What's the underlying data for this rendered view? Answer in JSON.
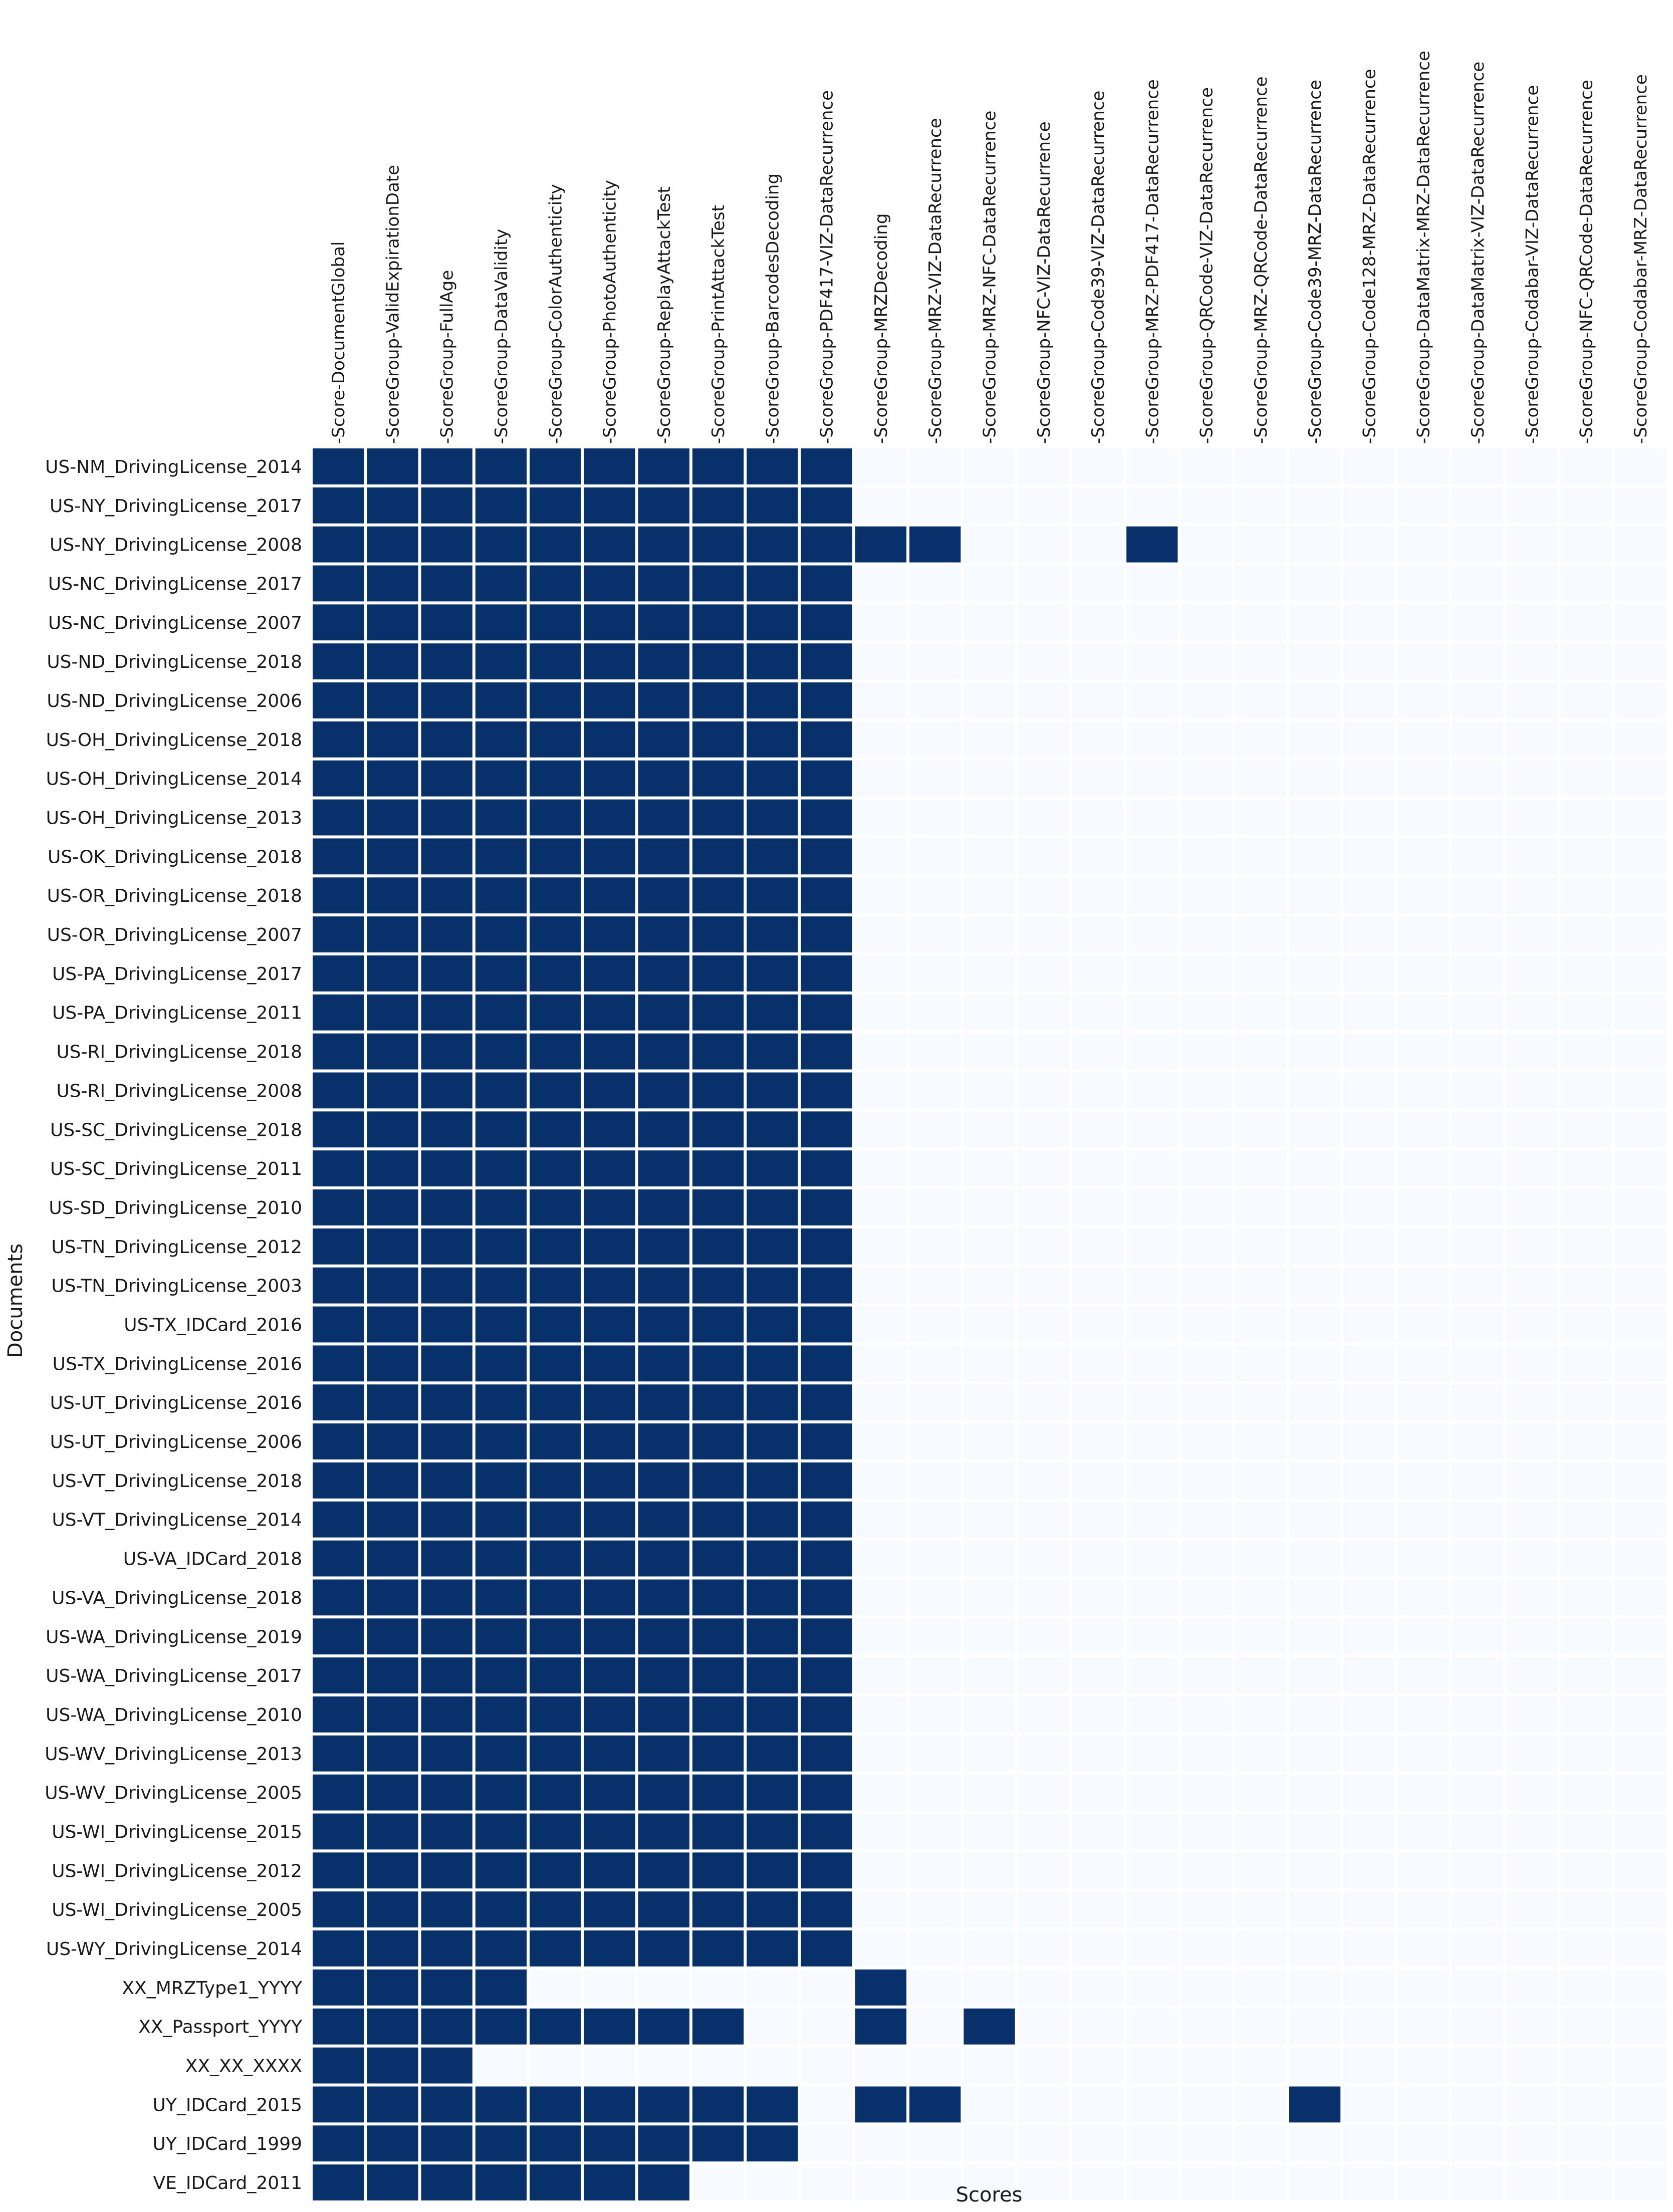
{
  "chart_data": {
    "type": "heatmap",
    "xlabel": "Scores",
    "ylabel": "Documents",
    "colors": {
      "high": "#08306b",
      "low": "#f7fbff",
      "separator": "#ffffff"
    },
    "columns": [
      "Score-DocumentGlobal",
      "ScoreGroup-ValidExpirationDate",
      "ScoreGroup-FullAge",
      "ScoreGroup-DataValidity",
      "ScoreGroup-ColorAuthenticity",
      "ScoreGroup-PhotoAuthenticity",
      "ScoreGroup-ReplayAttackTest",
      "ScoreGroup-PrintAttackTest",
      "ScoreGroup-BarcodesDecoding",
      "ScoreGroup-PDF417-VIZ-DataRecurrence",
      "ScoreGroup-MRZDecoding",
      "ScoreGroup-MRZ-VIZ-DataRecurrence",
      "ScoreGroup-MRZ-NFC-DataRecurrence",
      "ScoreGroup-NFC-VIZ-DataRecurrence",
      "ScoreGroup-Code39-VIZ-DataRecurrence",
      "ScoreGroup-MRZ-PDF417-DataRecurrence",
      "ScoreGroup-QRCode-VIZ-DataRecurrence",
      "ScoreGroup-MRZ-QRCode-DataRecurrence",
      "ScoreGroup-Code39-MRZ-DataRecurrence",
      "ScoreGroup-Code128-MRZ-DataRecurrence",
      "ScoreGroup-DataMatrix-MRZ-DataRecurrence",
      "ScoreGroup-DataMatrix-VIZ-DataRecurrence",
      "ScoreGroup-Codabar-VIZ-DataRecurrence",
      "ScoreGroup-NFC-QRCode-DataRecurrence",
      "ScoreGroup-Codabar-MRZ-DataRecurrence"
    ],
    "rows": [
      "US-NM_DrivingLicense_2014",
      "US-NY_DrivingLicense_2017",
      "US-NY_DrivingLicense_2008",
      "US-NC_DrivingLicense_2017",
      "US-NC_DrivingLicense_2007",
      "US-ND_DrivingLicense_2018",
      "US-ND_DrivingLicense_2006",
      "US-OH_DrivingLicense_2018",
      "US-OH_DrivingLicense_2014",
      "US-OH_DrivingLicense_2013",
      "US-OK_DrivingLicense_2018",
      "US-OR_DrivingLicense_2018",
      "US-OR_DrivingLicense_2007",
      "US-PA_DrivingLicense_2017",
      "US-PA_DrivingLicense_2011",
      "US-RI_DrivingLicense_2018",
      "US-RI_DrivingLicense_2008",
      "US-SC_DrivingLicense_2018",
      "US-SC_DrivingLicense_2011",
      "US-SD_DrivingLicense_2010",
      "US-TN_DrivingLicense_2012",
      "US-TN_DrivingLicense_2003",
      "US-TX_IDCard_2016",
      "US-TX_DrivingLicense_2016",
      "US-UT_DrivingLicense_2016",
      "US-UT_DrivingLicense_2006",
      "US-VT_DrivingLicense_2018",
      "US-VT_DrivingLicense_2014",
      "US-VA_IDCard_2018",
      "US-VA_DrivingLicense_2018",
      "US-WA_DrivingLicense_2019",
      "US-WA_DrivingLicense_2017",
      "US-WA_DrivingLicense_2010",
      "US-WV_DrivingLicense_2013",
      "US-WV_DrivingLicense_2005",
      "US-WI_DrivingLicense_2015",
      "US-WI_DrivingLicense_2012",
      "US-WI_DrivingLicense_2005",
      "US-WY_DrivingLicense_2014",
      "XX_MRZType1_YYYY",
      "XX_Passport_YYYY",
      "XX_XX_XXXX",
      "UY_IDCard_2015",
      "UY_IDCard_1999",
      "VE_IDCard_2011"
    ],
    "values": [
      [
        1,
        1,
        1,
        1,
        1,
        1,
        1,
        1,
        1,
        1,
        0,
        0,
        0,
        0,
        0,
        0,
        0,
        0,
        0,
        0,
        0,
        0,
        0,
        0,
        0
      ],
      [
        1,
        1,
        1,
        1,
        1,
        1,
        1,
        1,
        1,
        1,
        0,
        0,
        0,
        0,
        0,
        0,
        0,
        0,
        0,
        0,
        0,
        0,
        0,
        0,
        0
      ],
      [
        1,
        1,
        1,
        1,
        1,
        1,
        1,
        1,
        1,
        1,
        1,
        1,
        0,
        0,
        0,
        1,
        0,
        0,
        0,
        0,
        0,
        0,
        0,
        0,
        0
      ],
      [
        1,
        1,
        1,
        1,
        1,
        1,
        1,
        1,
        1,
        1,
        0,
        0,
        0,
        0,
        0,
        0,
        0,
        0,
        0,
        0,
        0,
        0,
        0,
        0,
        0
      ],
      [
        1,
        1,
        1,
        1,
        1,
        1,
        1,
        1,
        1,
        1,
        0,
        0,
        0,
        0,
        0,
        0,
        0,
        0,
        0,
        0,
        0,
        0,
        0,
        0,
        0
      ],
      [
        1,
        1,
        1,
        1,
        1,
        1,
        1,
        1,
        1,
        1,
        0,
        0,
        0,
        0,
        0,
        0,
        0,
        0,
        0,
        0,
        0,
        0,
        0,
        0,
        0
      ],
      [
        1,
        1,
        1,
        1,
        1,
        1,
        1,
        1,
        1,
        1,
        0,
        0,
        0,
        0,
        0,
        0,
        0,
        0,
        0,
        0,
        0,
        0,
        0,
        0,
        0
      ],
      [
        1,
        1,
        1,
        1,
        1,
        1,
        1,
        1,
        1,
        1,
        0,
        0,
        0,
        0,
        0,
        0,
        0,
        0,
        0,
        0,
        0,
        0,
        0,
        0,
        0
      ],
      [
        1,
        1,
        1,
        1,
        1,
        1,
        1,
        1,
        1,
        1,
        0,
        0,
        0,
        0,
        0,
        0,
        0,
        0,
        0,
        0,
        0,
        0,
        0,
        0,
        0
      ],
      [
        1,
        1,
        1,
        1,
        1,
        1,
        1,
        1,
        1,
        1,
        0,
        0,
        0,
        0,
        0,
        0,
        0,
        0,
        0,
        0,
        0,
        0,
        0,
        0,
        0
      ],
      [
        1,
        1,
        1,
        1,
        1,
        1,
        1,
        1,
        1,
        1,
        0,
        0,
        0,
        0,
        0,
        0,
        0,
        0,
        0,
        0,
        0,
        0,
        0,
        0,
        0
      ],
      [
        1,
        1,
        1,
        1,
        1,
        1,
        1,
        1,
        1,
        1,
        0,
        0,
        0,
        0,
        0,
        0,
        0,
        0,
        0,
        0,
        0,
        0,
        0,
        0,
        0
      ],
      [
        1,
        1,
        1,
        1,
        1,
        1,
        1,
        1,
        1,
        1,
        0,
        0,
        0,
        0,
        0,
        0,
        0,
        0,
        0,
        0,
        0,
        0,
        0,
        0,
        0
      ],
      [
        1,
        1,
        1,
        1,
        1,
        1,
        1,
        1,
        1,
        1,
        0,
        0,
        0,
        0,
        0,
        0,
        0,
        0,
        0,
        0,
        0,
        0,
        0,
        0,
        0
      ],
      [
        1,
        1,
        1,
        1,
        1,
        1,
        1,
        1,
        1,
        1,
        0,
        0,
        0,
        0,
        0,
        0,
        0,
        0,
        0,
        0,
        0,
        0,
        0,
        0,
        0
      ],
      [
        1,
        1,
        1,
        1,
        1,
        1,
        1,
        1,
        1,
        1,
        0,
        0,
        0,
        0,
        0,
        0,
        0,
        0,
        0,
        0,
        0,
        0,
        0,
        0,
        0
      ],
      [
        1,
        1,
        1,
        1,
        1,
        1,
        1,
        1,
        1,
        1,
        0,
        0,
        0,
        0,
        0,
        0,
        0,
        0,
        0,
        0,
        0,
        0,
        0,
        0,
        0
      ],
      [
        1,
        1,
        1,
        1,
        1,
        1,
        1,
        1,
        1,
        1,
        0,
        0,
        0,
        0,
        0,
        0,
        0,
        0,
        0,
        0,
        0,
        0,
        0,
        0,
        0
      ],
      [
        1,
        1,
        1,
        1,
        1,
        1,
        1,
        1,
        1,
        1,
        0,
        0,
        0,
        0,
        0,
        0,
        0,
        0,
        0,
        0,
        0,
        0,
        0,
        0,
        0
      ],
      [
        1,
        1,
        1,
        1,
        1,
        1,
        1,
        1,
        1,
        1,
        0,
        0,
        0,
        0,
        0,
        0,
        0,
        0,
        0,
        0,
        0,
        0,
        0,
        0,
        0
      ],
      [
        1,
        1,
        1,
        1,
        1,
        1,
        1,
        1,
        1,
        1,
        0,
        0,
        0,
        0,
        0,
        0,
        0,
        0,
        0,
        0,
        0,
        0,
        0,
        0,
        0
      ],
      [
        1,
        1,
        1,
        1,
        1,
        1,
        1,
        1,
        1,
        1,
        0,
        0,
        0,
        0,
        0,
        0,
        0,
        0,
        0,
        0,
        0,
        0,
        0,
        0,
        0
      ],
      [
        1,
        1,
        1,
        1,
        1,
        1,
        1,
        1,
        1,
        1,
        0,
        0,
        0,
        0,
        0,
        0,
        0,
        0,
        0,
        0,
        0,
        0,
        0,
        0,
        0
      ],
      [
        1,
        1,
        1,
        1,
        1,
        1,
        1,
        1,
        1,
        1,
        0,
        0,
        0,
        0,
        0,
        0,
        0,
        0,
        0,
        0,
        0,
        0,
        0,
        0,
        0
      ],
      [
        1,
        1,
        1,
        1,
        1,
        1,
        1,
        1,
        1,
        1,
        0,
        0,
        0,
        0,
        0,
        0,
        0,
        0,
        0,
        0,
        0,
        0,
        0,
        0,
        0
      ],
      [
        1,
        1,
        1,
        1,
        1,
        1,
        1,
        1,
        1,
        1,
        0,
        0,
        0,
        0,
        0,
        0,
        0,
        0,
        0,
        0,
        0,
        0,
        0,
        0,
        0
      ],
      [
        1,
        1,
        1,
        1,
        1,
        1,
        1,
        1,
        1,
        1,
        0,
        0,
        0,
        0,
        0,
        0,
        0,
        0,
        0,
        0,
        0,
        0,
        0,
        0,
        0
      ],
      [
        1,
        1,
        1,
        1,
        1,
        1,
        1,
        1,
        1,
        1,
        0,
        0,
        0,
        0,
        0,
        0,
        0,
        0,
        0,
        0,
        0,
        0,
        0,
        0,
        0
      ],
      [
        1,
        1,
        1,
        1,
        1,
        1,
        1,
        1,
        1,
        1,
        0,
        0,
        0,
        0,
        0,
        0,
        0,
        0,
        0,
        0,
        0,
        0,
        0,
        0,
        0
      ],
      [
        1,
        1,
        1,
        1,
        1,
        1,
        1,
        1,
        1,
        1,
        0,
        0,
        0,
        0,
        0,
        0,
        0,
        0,
        0,
        0,
        0,
        0,
        0,
        0,
        0
      ],
      [
        1,
        1,
        1,
        1,
        1,
        1,
        1,
        1,
        1,
        1,
        0,
        0,
        0,
        0,
        0,
        0,
        0,
        0,
        0,
        0,
        0,
        0,
        0,
        0,
        0
      ],
      [
        1,
        1,
        1,
        1,
        1,
        1,
        1,
        1,
        1,
        1,
        0,
        0,
        0,
        0,
        0,
        0,
        0,
        0,
        0,
        0,
        0,
        0,
        0,
        0,
        0
      ],
      [
        1,
        1,
        1,
        1,
        1,
        1,
        1,
        1,
        1,
        1,
        0,
        0,
        0,
        0,
        0,
        0,
        0,
        0,
        0,
        0,
        0,
        0,
        0,
        0,
        0
      ],
      [
        1,
        1,
        1,
        1,
        1,
        1,
        1,
        1,
        1,
        1,
        0,
        0,
        0,
        0,
        0,
        0,
        0,
        0,
        0,
        0,
        0,
        0,
        0,
        0,
        0
      ],
      [
        1,
        1,
        1,
        1,
        1,
        1,
        1,
        1,
        1,
        1,
        0,
        0,
        0,
        0,
        0,
        0,
        0,
        0,
        0,
        0,
        0,
        0,
        0,
        0,
        0
      ],
      [
        1,
        1,
        1,
        1,
        1,
        1,
        1,
        1,
        1,
        1,
        0,
        0,
        0,
        0,
        0,
        0,
        0,
        0,
        0,
        0,
        0,
        0,
        0,
        0,
        0
      ],
      [
        1,
        1,
        1,
        1,
        1,
        1,
        1,
        1,
        1,
        1,
        0,
        0,
        0,
        0,
        0,
        0,
        0,
        0,
        0,
        0,
        0,
        0,
        0,
        0,
        0
      ],
      [
        1,
        1,
        1,
        1,
        1,
        1,
        1,
        1,
        1,
        1,
        0,
        0,
        0,
        0,
        0,
        0,
        0,
        0,
        0,
        0,
        0,
        0,
        0,
        0,
        0
      ],
      [
        1,
        1,
        1,
        1,
        1,
        1,
        1,
        1,
        1,
        1,
        0,
        0,
        0,
        0,
        0,
        0,
        0,
        0,
        0,
        0,
        0,
        0,
        0,
        0,
        0
      ],
      [
        1,
        1,
        1,
        1,
        0,
        0,
        0,
        0,
        0,
        0,
        1,
        0,
        0,
        0,
        0,
        0,
        0,
        0,
        0,
        0,
        0,
        0,
        0,
        0,
        0
      ],
      [
        1,
        1,
        1,
        1,
        1,
        1,
        1,
        1,
        0,
        0,
        1,
        0,
        1,
        0,
        0,
        0,
        0,
        0,
        0,
        0,
        0,
        0,
        0,
        0,
        0
      ],
      [
        1,
        1,
        1,
        0,
        0,
        0,
        0,
        0,
        0,
        0,
        0,
        0,
        0,
        0,
        0,
        0,
        0,
        0,
        0,
        0,
        0,
        0,
        0,
        0,
        0
      ],
      [
        1,
        1,
        1,
        1,
        1,
        1,
        1,
        1,
        1,
        0,
        1,
        1,
        0,
        0,
        0,
        0,
        0,
        0,
        1,
        0,
        0,
        0,
        0,
        0,
        0
      ],
      [
        1,
        1,
        1,
        1,
        1,
        1,
        1,
        1,
        1,
        0,
        0,
        0,
        0,
        0,
        0,
        0,
        0,
        0,
        0,
        0,
        0,
        0,
        0,
        0,
        0
      ],
      [
        1,
        1,
        1,
        1,
        1,
        1,
        1,
        0,
        0,
        0,
        0,
        0,
        0,
        0,
        0,
        0,
        0,
        0,
        0,
        0,
        0,
        0,
        0,
        0,
        0
      ]
    ]
  }
}
